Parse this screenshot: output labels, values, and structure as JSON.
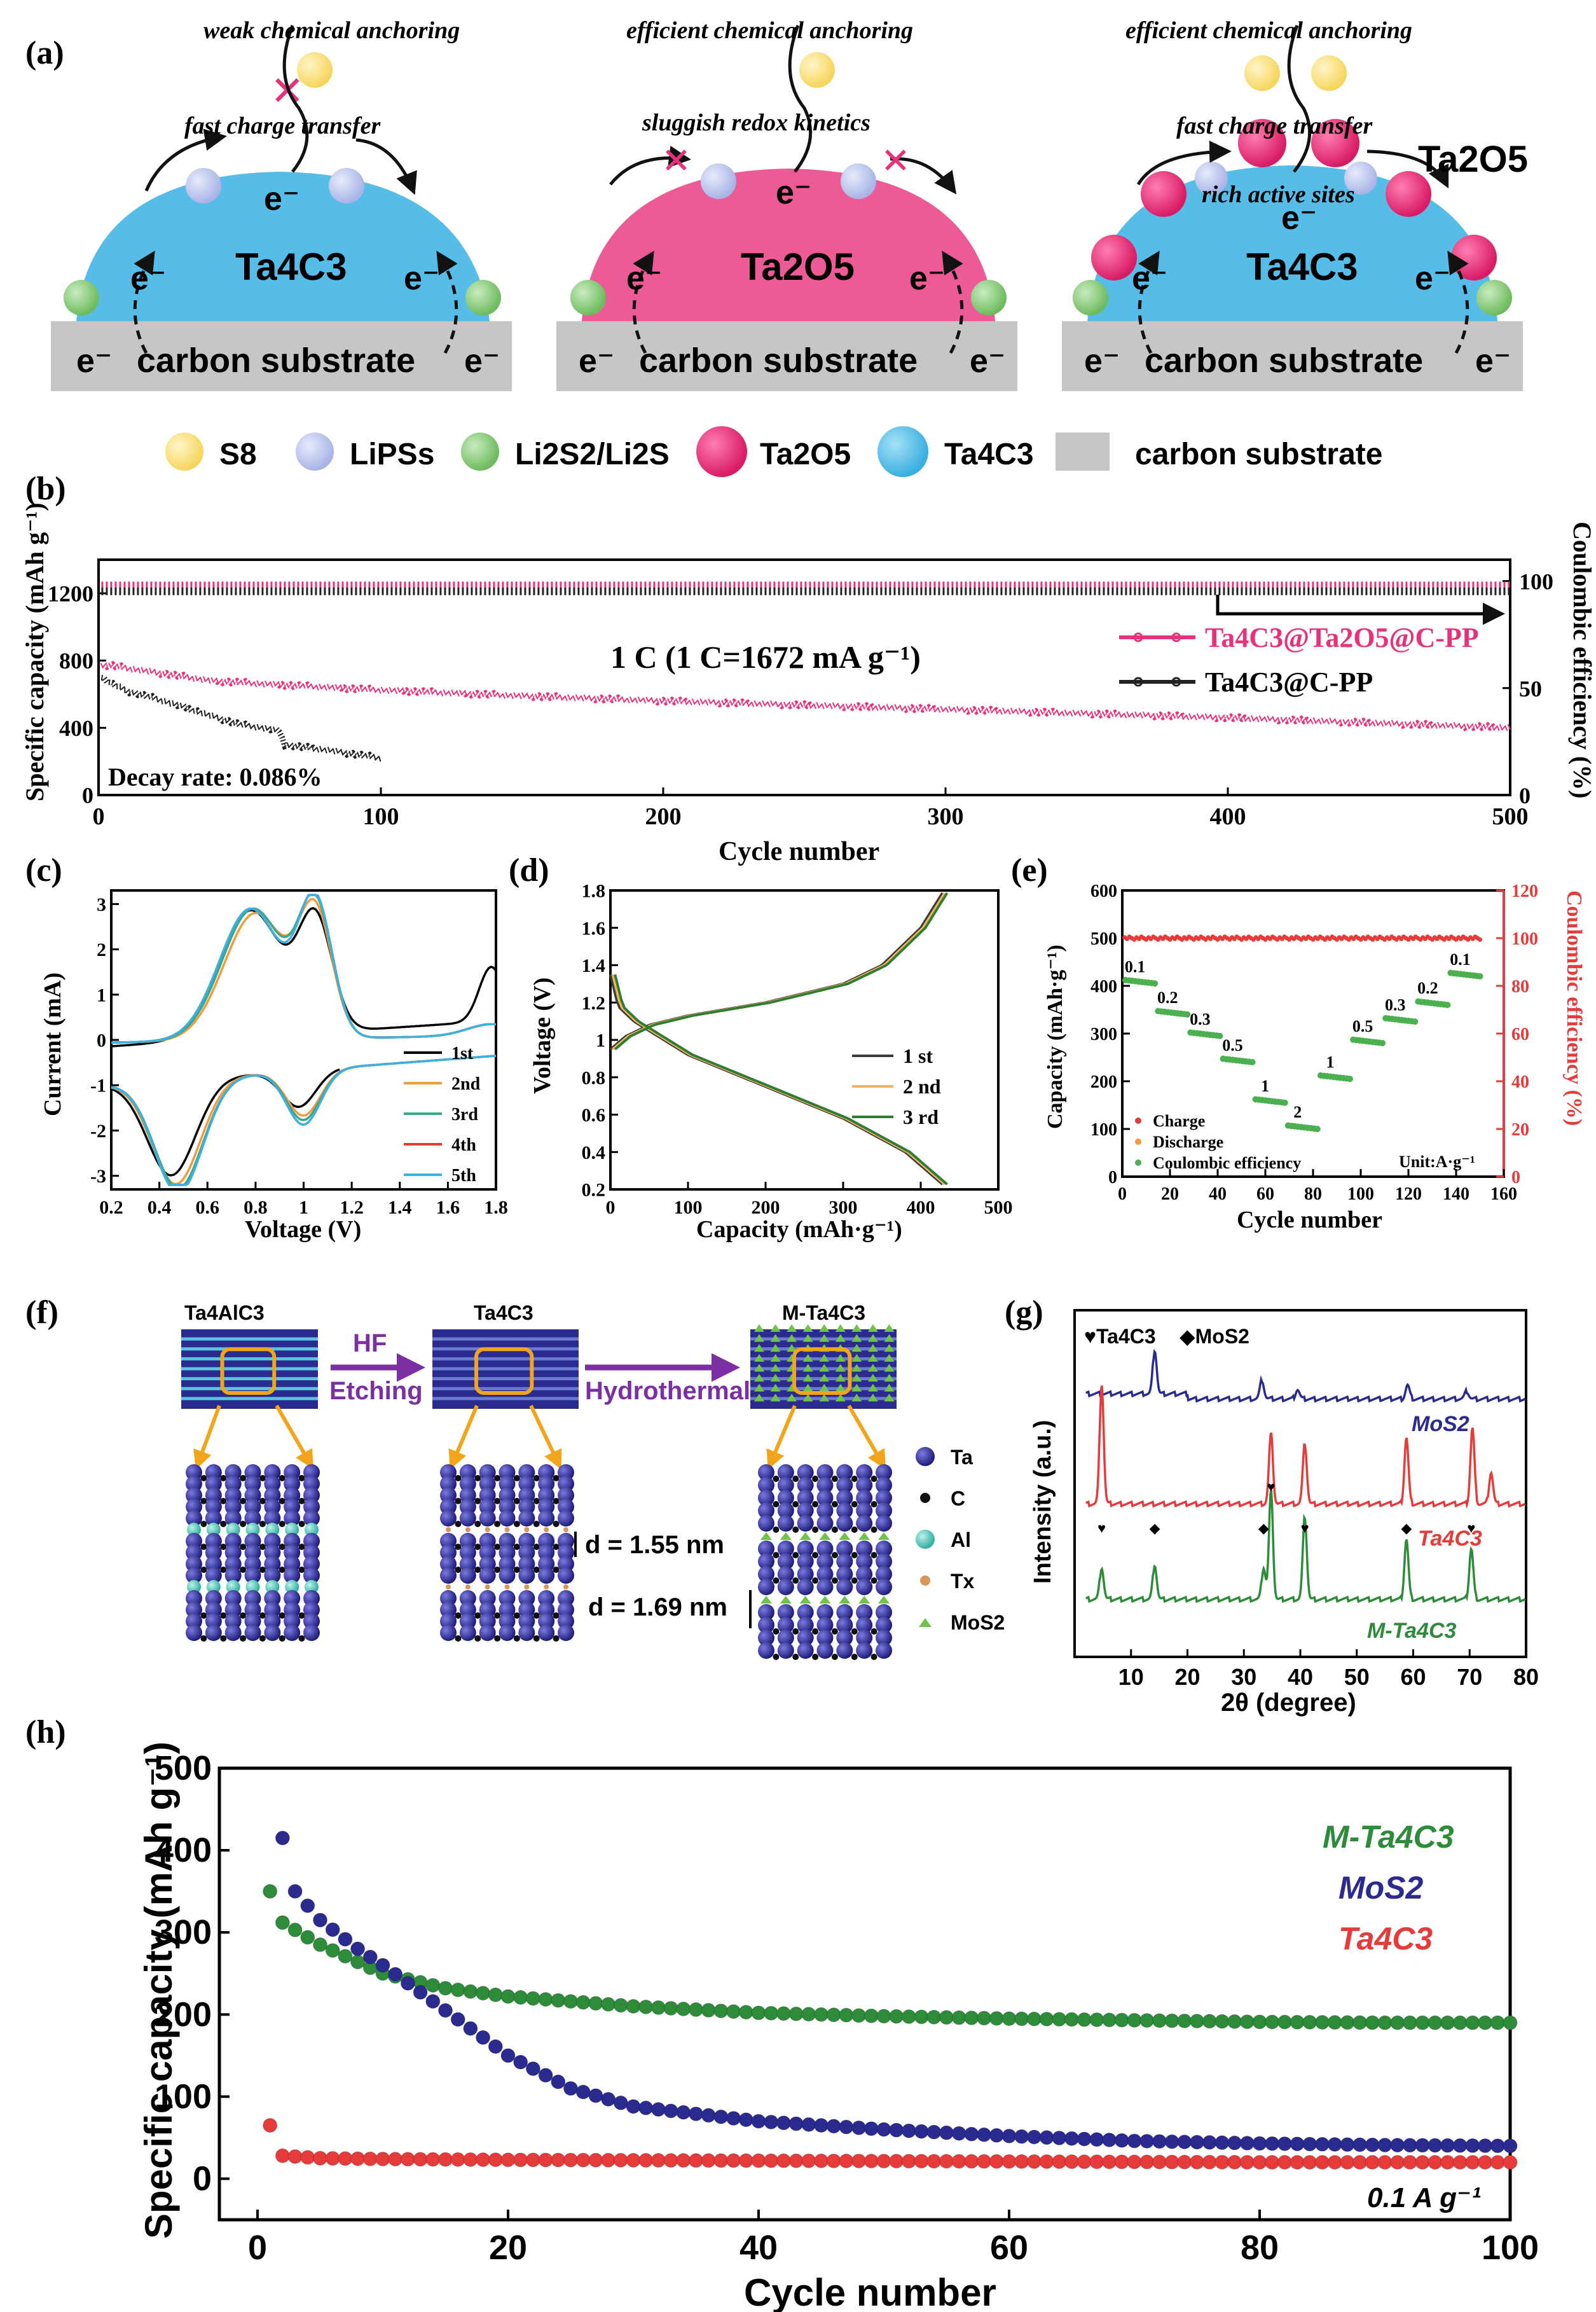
{
  "panels": {
    "a": {
      "label": "(a)",
      "left": {
        "top_label": "weak chemical anchoring",
        "mid_label": "fast charge transfer",
        "material": "Ta4C3",
        "substrate": "carbon substrate"
      },
      "middle": {
        "top_label": "efficient chemical anchoring",
        "mid_label": "sluggish redox kinetics",
        "material": "Ta2O5",
        "substrate": "carbon substrate"
      },
      "right": {
        "top_label": "efficient chemical anchoring",
        "mid_label": "fast charge transfer",
        "sites_label": "rich active sites",
        "ta2o5_label": "Ta2O5",
        "material": "Ta4C3",
        "substrate": "carbon substrate"
      },
      "electron": "e⁻",
      "legend": [
        {
          "name": "S8",
          "color": "#fbe07a"
        },
        {
          "name": "LiPSs",
          "color": "#b9c3ea"
        },
        {
          "name": "Li2S2/Li2S",
          "color": "#86c87a"
        },
        {
          "name": "Ta2O5",
          "color": "#e8317a"
        },
        {
          "name": "Ta4C3",
          "color": "#55bde7"
        },
        {
          "name": "carbon substrate",
          "color": "#c8c6c4"
        }
      ]
    },
    "b": {
      "label": "(b)",
      "chart_data": {
        "type": "line",
        "title": "1 C (1 C=1672 mA g⁻¹)",
        "xlabel": "Cycle number",
        "ylabel": "Specific capacity (mAh g⁻¹)",
        "ylabel_right": "Coulombic efficiency (%)",
        "xlim": [
          0,
          500
        ],
        "ylim": [
          0,
          1400
        ],
        "ylim_right": [
          0,
          110
        ],
        "x_ticks": [
          0,
          100,
          200,
          300,
          400,
          500
        ],
        "y_ticks": [
          0,
          400,
          800,
          1200
        ],
        "y_ticks_right": [
          0,
          50,
          100
        ],
        "annotation": "Decay rate: 0.086%",
        "series": [
          {
            "name": "Ta4C3@Ta2O5@C-PP",
            "color": "#e8317a",
            "x": [
              1,
              5,
              10,
              20,
              40,
              60,
              100,
              150,
              200,
              250,
              300,
              350,
              400,
              450,
              500
            ],
            "capacity": [
              770,
              770,
              755,
              730,
              680,
              660,
              625,
              590,
              560,
              535,
              510,
              485,
              460,
              430,
              400
            ],
            "ce": 98
          },
          {
            "name": "Ta4C3@C-PP",
            "color": "#222222",
            "x": [
              1,
              5,
              10,
              20,
              30,
              40,
              50,
              60,
              64,
              66,
              70,
              80,
              90,
              100
            ],
            "capacity": [
              700,
              660,
              620,
              575,
              525,
              470,
              420,
              395,
              380,
              300,
              290,
              270,
              245,
              220
            ],
            "ce": 97
          }
        ]
      }
    },
    "c": {
      "label": "(c)",
      "chart_data": {
        "type": "line",
        "xlabel": "Voltage (V)",
        "ylabel": "Current (mA)",
        "xlim": [
          0.2,
          1.8
        ],
        "ylim": [
          -3.3,
          3.3
        ],
        "x_ticks": [
          0.2,
          0.4,
          0.6,
          0.8,
          1.0,
          1.2,
          1.4,
          1.6,
          1.8
        ],
        "y_ticks": [
          -3,
          -2,
          -1,
          0,
          1,
          2,
          3
        ],
        "series": [
          {
            "name": "1st",
            "color": "#000000",
            "anodic_peaks": [
              [
                0.78,
                2.8
              ],
              [
                1.05,
                2.4
              ]
            ],
            "cathodic_peaks": [
              [
                0.45,
                -2.1
              ],
              [
                0.98,
                -1.6
              ]
            ]
          },
          {
            "name": "2nd",
            "color": "#f39a3c",
            "anodic_peaks": [
              [
                0.8,
                2.8
              ],
              [
                1.05,
                2.6
              ]
            ],
            "cathodic_peaks": [
              [
                0.47,
                -2.3
              ],
              [
                1.0,
                -1.8
              ]
            ]
          },
          {
            "name": "3rd",
            "color": "#3aa88f",
            "anodic_peaks": [
              [
                0.79,
                2.9
              ],
              [
                1.05,
                2.8
              ]
            ],
            "cathodic_peaks": [
              [
                0.48,
                -2.4
              ],
              [
                1.0,
                -1.9
              ]
            ]
          },
          {
            "name": "4th",
            "color": "#e53b3b",
            "anodic_peaks": [
              [
                0.78,
                2.9
              ],
              [
                1.05,
                2.9
              ]
            ],
            "cathodic_peaks": [
              [
                0.48,
                -2.5
              ],
              [
                1.0,
                -2.0
              ]
            ]
          },
          {
            "name": "5th",
            "color": "#3bb3e0",
            "anodic_peaks": [
              [
                0.78,
                2.9
              ],
              [
                1.05,
                2.9
              ]
            ],
            "cathodic_peaks": [
              [
                0.48,
                -2.5
              ],
              [
                1.0,
                -2.0
              ]
            ]
          }
        ],
        "legend_labels": [
          "1st",
          "2nd",
          "3rd",
          "4th",
          "5th"
        ]
      }
    },
    "d": {
      "label": "(d)",
      "chart_data": {
        "type": "line",
        "xlabel": "Capacity (mAh·g⁻¹)",
        "ylabel": "Voltage (V)",
        "xlim": [
          0,
          500
        ],
        "ylim": [
          0.2,
          1.8
        ],
        "x_ticks": [
          0,
          100,
          200,
          300,
          400,
          500
        ],
        "y_ticks": [
          0.2,
          0.4,
          0.6,
          0.8,
          1.0,
          1.2,
          1.4,
          1.6,
          1.8
        ],
        "series": [
          {
            "name": "1 st",
            "color": "#3b3b3b"
          },
          {
            "name": "2 nd",
            "color": "#f3b35a"
          },
          {
            "name": "3 rd",
            "color": "#2e7d32"
          }
        ],
        "charge_curve": {
          "x": [
            0,
            20,
            50,
            100,
            200,
            300,
            350,
            400,
            430
          ],
          "y": [
            0.95,
            1.02,
            1.08,
            1.13,
            1.2,
            1.3,
            1.4,
            1.6,
            1.8
          ]
        },
        "discharge_curve": {
          "x": [
            0,
            10,
            30,
            100,
            200,
            300,
            380,
            430
          ],
          "y": [
            1.35,
            1.18,
            1.1,
            0.92,
            0.75,
            0.58,
            0.4,
            0.22
          ]
        }
      }
    },
    "e": {
      "label": "(e)",
      "chart_data": {
        "type": "scatter",
        "xlabel": "Cycle number",
        "ylabel": "Capacity (mAh·g⁻¹)",
        "ylabel_right": "Coulombic efficiency (%)",
        "xlim": [
          0,
          160
        ],
        "ylim": [
          0,
          600
        ],
        "ylim_right": [
          0,
          120
        ],
        "x_ticks": [
          0,
          20,
          40,
          60,
          80,
          100,
          120,
          140,
          160
        ],
        "y_ticks": [
          0,
          100,
          200,
          300,
          400,
          500,
          600
        ],
        "y_ticks_right": [
          0,
          20,
          40,
          60,
          80,
          100,
          120
        ],
        "unit_label": "Unit:A·g⁻¹",
        "steps": [
          {
            "rate": "0.1",
            "x0": 1,
            "x1": 10,
            "cap": 405
          },
          {
            "rate": "0.2",
            "x0": 11,
            "x1": 20,
            "cap": 340
          },
          {
            "rate": "0.3",
            "x0": 21,
            "x1": 30,
            "cap": 295
          },
          {
            "rate": "0.5",
            "x0": 31,
            "x1": 40,
            "cap": 240
          },
          {
            "rate": "1",
            "x0": 41,
            "x1": 50,
            "cap": 155
          },
          {
            "rate": "2",
            "x0": 51,
            "x1": 60,
            "cap": 100
          },
          {
            "rate": "1",
            "x0": 61,
            "x1": 70,
            "cap": 205
          },
          {
            "rate": "0.5",
            "x0": 71,
            "x1": 80,
            "cap": 280
          },
          {
            "rate": "0.3",
            "x0": 81,
            "x1": 90,
            "cap": 325
          },
          {
            "rate": "0.2",
            "x0": 91,
            "x1": 100,
            "cap": 360
          },
          {
            "rate": "0.1",
            "x0": 101,
            "x1": 110,
            "cap": 420
          }
        ],
        "legend": [
          {
            "name": "Charge",
            "color": "#e53b3b"
          },
          {
            "name": "Discharge",
            "color": "#f39a3c"
          },
          {
            "name": "Coulombic efficiency",
            "color": "#4caf50"
          }
        ],
        "coulombic_efficiency": 100
      }
    },
    "f": {
      "label": "(f)",
      "stage1": "Ta4AlC3",
      "stage2": "Ta4C3",
      "stage3": "M-Ta4C3",
      "arrow1_top": "HF",
      "arrow1_bottom": "Etching",
      "arrow2": "Hydrothermal",
      "d1": "d = 1.55 nm",
      "d2": "d = 1.69 nm",
      "legend": [
        {
          "name": "Ta",
          "color": "#2b2a8f"
        },
        {
          "name": "C",
          "color": "#111111"
        },
        {
          "name": "Al",
          "color": "#4dc6b8"
        },
        {
          "name": "Tx",
          "color": "#d8965a"
        },
        {
          "name": "MoS2",
          "color": "#6fc24a"
        }
      ]
    },
    "g": {
      "label": "(g)",
      "chart_data": {
        "type": "line",
        "xlabel": "2θ (degree)",
        "ylabel": "Intensity (a.u.)",
        "xlim": [
          0,
          80
        ],
        "x_ticks": [
          10,
          20,
          30,
          40,
          50,
          60,
          70,
          80
        ],
        "legend": [
          "♥Ta4C3",
          "◆MoS2"
        ],
        "series": [
          {
            "name": "MoS2",
            "color": "#2b2a8f",
            "peaks": [
              14.2,
              33.2,
              39.5,
              59.0,
              69.5
            ]
          },
          {
            "name": "Ta4C3",
            "color": "#e53b3b",
            "peaks": [
              4.8,
              34.8,
              40.8,
              58.8,
              70.5,
              73.8
            ]
          },
          {
            "name": "M-Ta4C3",
            "color": "#2e8b3a",
            "peaks": [
              4.8,
              14.2,
              33.5,
              34.8,
              40.8,
              58.8,
              70.3
            ]
          }
        ]
      }
    },
    "h": {
      "label": "(h)",
      "chart_data": {
        "type": "scatter",
        "xlabel": "Cycle number",
        "ylabel": "Specific capacity (mAh g⁻¹)",
        "xlim": [
          0,
          100
        ],
        "ylim": [
          -50,
          500
        ],
        "x_ticks": [
          0,
          20,
          40,
          60,
          80,
          100
        ],
        "y_ticks": [
          0,
          100,
          200,
          300,
          400,
          500
        ],
        "annotation": "0.1 A g⁻¹",
        "series": [
          {
            "name": "M-Ta4C3",
            "color": "#2e8b3a",
            "x": [
              1,
              2,
              5,
              10,
              15,
              20,
              30,
              40,
              50,
              60,
              70,
              80,
              90,
              100
            ],
            "values": [
              350,
              312,
              285,
              250,
              232,
              222,
              210,
              202,
              198,
              195,
              193,
              191,
              190,
              190
            ]
          },
          {
            "name": "MoS2",
            "color": "#2b2a8f",
            "x": [
              2,
              3,
              5,
              8,
              10,
              15,
              20,
              25,
              30,
              40,
              50,
              60,
              70,
              80,
              90,
              100
            ],
            "values": [
              415,
              350,
              315,
              280,
              260,
              205,
              150,
              110,
              88,
              70,
              60,
              52,
              46,
              43,
              41,
              40
            ]
          },
          {
            "name": "Ta4C3",
            "color": "#e53b3b",
            "x": [
              1,
              2,
              5,
              10,
              20,
              40,
              60,
              80,
              100
            ],
            "values": [
              65,
              28,
              25,
              24,
              23,
              22,
              21,
              20,
              20
            ]
          }
        ]
      }
    }
  }
}
